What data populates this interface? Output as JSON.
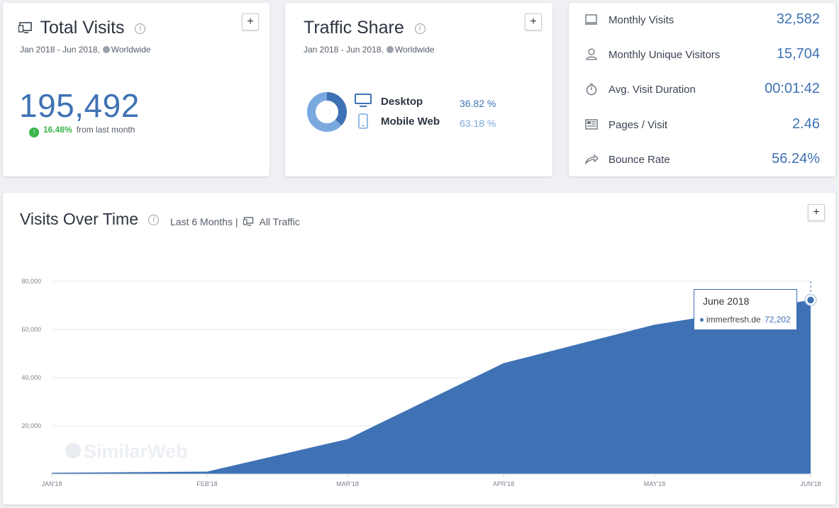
{
  "total_visits": {
    "title": "Total Visits",
    "date_range": "Jan 2018 - Jun 2018,",
    "region": "Worldwide",
    "value": "195,492",
    "change_pct": "16.48%",
    "change_text": "from last month",
    "add_label": "+"
  },
  "traffic_share": {
    "title": "Traffic Share",
    "date_range": "Jan 2018 - Jun 2018,",
    "region": "Worldwide",
    "add_label": "+",
    "rows": [
      {
        "label": "Desktop",
        "value": "36.82 %",
        "share": 36.82,
        "color": "#3f72b5"
      },
      {
        "label": "Mobile Web",
        "value": "63.18 %",
        "share": 63.18,
        "color": "#7aa9df"
      }
    ]
  },
  "metrics": [
    {
      "label": "Monthly Visits",
      "value": "32,582",
      "icon": "monitor-icon"
    },
    {
      "label": "Monthly Unique Visitors",
      "value": "15,704",
      "icon": "user-icon"
    },
    {
      "label": "Avg. Visit Duration",
      "value": "00:01:42",
      "icon": "stopwatch-icon"
    },
    {
      "label": "Pages / Visit",
      "value": "2.46",
      "icon": "pages-icon"
    },
    {
      "label": "Bounce Rate",
      "value": "56.24%",
      "icon": "bounce-icon"
    }
  ],
  "visits_over_time": {
    "title": "Visits Over Time",
    "range": "Last 6 Months |",
    "traffic": "All Traffic",
    "add_label": "+",
    "watermark": "SimilarWeb",
    "tooltip": {
      "title": "June 2018",
      "site": "immerfresh.de",
      "value": "72,202"
    }
  },
  "chart_data": {
    "type": "area",
    "title": "Visits Over Time",
    "x": [
      "JAN'18",
      "FEB'18",
      "MAR'18",
      "APR'18",
      "MAY'18",
      "JUN'18"
    ],
    "series": [
      {
        "name": "immerfresh.de",
        "values": [
          500,
          1000,
          14500,
          46000,
          62000,
          72202
        ]
      }
    ],
    "ylim": [
      0,
      80000
    ],
    "yticks": [
      "20,000",
      "40,000",
      "60,000",
      "80,000"
    ],
    "ytick_values": [
      20000,
      40000,
      60000,
      80000
    ],
    "grid": true,
    "color": "#3f72b5"
  }
}
